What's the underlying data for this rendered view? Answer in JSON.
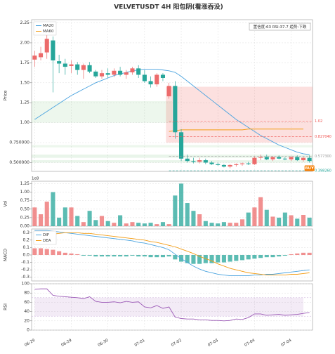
{
  "chart_data": {
    "type": "candlestick",
    "title": "VELVETUSDT  4H  阳包阴(看涨吞没)",
    "info": "置信度:63  RSI:37.7  趋势:下跌",
    "ylabel": "Price",
    "categories": [
      "06-29",
      null,
      null,
      null,
      null,
      null,
      "06-29",
      null,
      null,
      null,
      null,
      null,
      "06-30",
      null,
      null,
      null,
      null,
      null,
      "07-01",
      null,
      null,
      null,
      null,
      null,
      "07-02",
      null,
      null,
      null,
      null,
      null,
      "07-03",
      null,
      null,
      null,
      null,
      null,
      "07-04",
      null,
      null,
      null,
      null,
      null,
      "07-04",
      null,
      null,
      null
    ],
    "open": [
      1.79,
      1.82,
      1.88,
      2.03,
      1.77,
      1.74,
      1.71,
      1.73,
      1.66,
      1.72,
      1.64,
      1.58,
      1.62,
      1.6,
      1.65,
      1.6,
      1.63,
      1.68,
      1.6,
      1.52,
      1.48,
      1.6,
      1.33,
      1.46,
      0.88,
      0.55,
      0.52,
      0.51,
      0.53,
      0.5,
      0.48,
      0.47,
      0.45,
      0.47,
      0.48,
      0.49,
      0.48,
      0.56,
      0.57,
      0.54,
      0.57,
      0.55,
      0.54,
      0.57,
      0.53,
      0.56
    ],
    "high": [
      1.9,
      1.95,
      2.12,
      2.08,
      1.85,
      1.8,
      1.78,
      1.76,
      1.74,
      1.76,
      1.66,
      1.66,
      1.68,
      1.68,
      1.7,
      1.66,
      1.7,
      1.72,
      1.66,
      1.58,
      1.62,
      1.62,
      1.5,
      1.52,
      0.92,
      0.6,
      0.56,
      0.56,
      0.55,
      0.52,
      0.5,
      0.48,
      0.48,
      0.49,
      0.5,
      0.51,
      0.58,
      0.6,
      0.6,
      0.58,
      0.59,
      0.57,
      0.58,
      0.59,
      0.57,
      0.59
    ],
    "low": [
      1.7,
      1.78,
      1.8,
      1.38,
      1.62,
      1.6,
      1.62,
      1.6,
      1.55,
      1.62,
      1.56,
      1.55,
      1.56,
      1.57,
      1.58,
      1.55,
      1.6,
      1.56,
      1.5,
      1.44,
      1.45,
      1.52,
      1.3,
      0.8,
      0.52,
      0.5,
      0.49,
      0.49,
      0.48,
      0.47,
      0.46,
      0.44,
      0.43,
      0.45,
      0.46,
      0.47,
      0.47,
      0.53,
      0.53,
      0.52,
      0.54,
      0.53,
      0.52,
      0.52,
      0.51,
      0.5
    ],
    "close": [
      1.84,
      1.87,
      2.05,
      1.78,
      1.74,
      1.7,
      1.73,
      1.66,
      1.72,
      1.64,
      1.58,
      1.62,
      1.6,
      1.65,
      1.6,
      1.63,
      1.68,
      1.6,
      1.52,
      1.48,
      1.6,
      1.56,
      1.46,
      0.88,
      0.55,
      0.52,
      0.51,
      0.53,
      0.5,
      0.48,
      0.47,
      0.45,
      0.47,
      0.48,
      0.49,
      0.48,
      0.56,
      0.57,
      0.54,
      0.57,
      0.55,
      0.54,
      0.57,
      0.53,
      0.56,
      0.52
    ],
    "up_color": "#ec6b6b",
    "down_color": "#26a69a",
    "grid": true,
    "ylim": [
      0.39,
      2.29
    ],
    "yticks": [
      {
        "value": 0.5,
        "label": "0.500000"
      },
      {
        "value": 0.75,
        "label": "0.750000"
      },
      {
        "value": 1,
        "label": "1.00"
      },
      1.25,
      {
        "value": 1.5,
        "label": "1.50"
      },
      1.75,
      {
        "value": 2,
        "label": "2.00"
      },
      2.25
    ],
    "lines": [
      {
        "name": "MA20",
        "color": "#4aa3df",
        "values": [
          1.04,
          1.09,
          1.14,
          1.19,
          1.24,
          1.29,
          1.34,
          1.38,
          1.42,
          1.46,
          1.5,
          1.53,
          1.56,
          1.59,
          1.61,
          1.63,
          1.65,
          1.66,
          1.67,
          1.67,
          1.67,
          1.66,
          1.65,
          1.63,
          1.58,
          1.52,
          1.46,
          1.4,
          1.34,
          1.28,
          1.22,
          1.16,
          1.1,
          1.04,
          0.99,
          0.94,
          0.89,
          0.84,
          0.8,
          0.76,
          0.72,
          0.69,
          0.66,
          0.63,
          0.61,
          0.6
        ]
      },
      {
        "name": "MA60",
        "color": "#f39c12",
        "values": [
          null,
          null,
          null,
          null,
          null,
          null,
          null,
          null,
          null,
          null,
          null,
          null,
          null,
          null,
          null,
          null,
          null,
          null,
          null,
          null,
          null,
          null,
          0.89,
          0.9,
          0.91,
          0.91,
          0.91,
          0.91,
          0.91,
          0.91,
          0.91,
          0.91,
          0.91,
          0.91,
          0.91,
          0.92,
          0.92,
          0.92,
          0.92,
          0.92,
          0.92,
          0.92,
          0.92,
          0.92,
          0.92,
          null
        ]
      }
    ],
    "zones": [
      {
        "y0": 1.0,
        "y1": 1.27,
        "start": 0,
        "end": 22,
        "color": "rgba(76,175,80,0.10)"
      },
      {
        "y0": 0.69,
        "y1": 0.72,
        "start": 0,
        "end": 45,
        "color": "rgba(76,175,80,0.10)"
      },
      {
        "y0": 0.56,
        "y1": 0.6,
        "start": 0,
        "end": 45,
        "color": "rgba(76,175,80,0.12)"
      },
      {
        "y0": 0.5,
        "y1": 0.53,
        "start": 0,
        "end": 45,
        "color": "rgba(76,175,80,0.12)"
      },
      {
        "y0": 0.75,
        "y1": 1.45,
        "start": 22,
        "end": 45,
        "color": "rgba(239,83,80,0.18)"
      }
    ],
    "levels": [
      {
        "value": 1.02,
        "label": "1.02",
        "color": "#ef5350"
      },
      {
        "value": 0.82704,
        "label": "0.827040",
        "color": "#ef5350"
      },
      {
        "value": 0.5773,
        "label": "0.577300",
        "color": "#999999"
      },
      {
        "value": 0.39826,
        "label": "0.398260",
        "color": "#26a69a"
      }
    ],
    "signal": {
      "label": "BUY",
      "color": "#f57c00"
    },
    "volume": {
      "ylabel": "Vol",
      "scale_label": "1e8",
      "ylim": [
        0,
        1.32
      ],
      "yticks": [
        {
          "value": 0,
          "label": "0.00"
        },
        0.25,
        {
          "value": 0.5,
          "label": "0.50"
        },
        0.75,
        {
          "value": 1,
          "label": "1.00"
        },
        1.25
      ],
      "values": [
        0.55,
        0.35,
        0.72,
        1.0,
        0.25,
        0.55,
        0.55,
        0.3,
        0.12,
        0.45,
        0.18,
        0.3,
        0.15,
        0.1,
        0.32,
        0.08,
        0.12,
        0.1,
        0.08,
        0.1,
        0.06,
        0.12,
        0.06,
        0.9,
        1.25,
        0.68,
        0.45,
        0.35,
        0.15,
        0.1,
        0.08,
        0.12,
        0.1,
        0.1,
        0.2,
        0.4,
        0.55,
        0.85,
        0.48,
        0.28,
        0.25,
        0.4,
        0.32,
        0.22,
        0.33,
        0.25
      ]
    },
    "macd": {
      "ylabel": "MACD",
      "ylim": [
        -0.35,
        0.35
      ],
      "yticks": [
        -0.3,
        -0.2,
        -0.1,
        {
          "value": 0,
          "label": "0.0"
        },
        0.1,
        0.2,
        0.3
      ],
      "hist": [
        0.09,
        0.09,
        0.08,
        0.07,
        0.05,
        0.03,
        0.02,
        0.01,
        -0.01,
        -0.01,
        -0.02,
        -0.02,
        -0.02,
        -0.02,
        -0.02,
        -0.02,
        -0.01,
        -0.02,
        -0.02,
        -0.03,
        -0.03,
        -0.03,
        -0.02,
        -0.06,
        -0.09,
        -0.11,
        -0.12,
        -0.12,
        -0.11,
        -0.11,
        -0.1,
        -0.1,
        -0.09,
        -0.08,
        -0.07,
        -0.06,
        -0.05,
        -0.04,
        -0.03,
        -0.03,
        -0.02,
        -0.01,
        0.01,
        0.02,
        0.03,
        0.03
      ],
      "series": [
        {
          "name": "DIF",
          "color": "#4aa3df",
          "values": [
            0.33,
            0.33,
            0.33,
            0.32,
            0.31,
            0.3,
            0.29,
            0.28,
            0.27,
            0.26,
            0.25,
            0.24,
            0.23,
            0.22,
            0.21,
            0.2,
            0.19,
            0.17,
            0.16,
            0.14,
            0.12,
            0.1,
            0.07,
            0.01,
            -0.05,
            -0.1,
            -0.15,
            -0.19,
            -0.22,
            -0.24,
            -0.26,
            -0.27,
            -0.28,
            -0.28,
            -0.28,
            -0.28,
            -0.27,
            -0.27,
            -0.26,
            -0.26,
            -0.25,
            -0.24,
            -0.23,
            -0.22,
            -0.21,
            -0.2
          ]
        },
        {
          "name": "DEA",
          "color": "#f39c12",
          "values": [
            0.24,
            0.26,
            0.27,
            0.28,
            0.29,
            0.3,
            0.3,
            0.3,
            0.29,
            0.29,
            0.28,
            0.27,
            0.26,
            0.25,
            0.24,
            0.23,
            0.22,
            0.21,
            0.2,
            0.18,
            0.17,
            0.15,
            0.13,
            0.11,
            0.08,
            0.05,
            0.02,
            -0.02,
            -0.05,
            -0.08,
            -0.12,
            -0.15,
            -0.18,
            -0.2,
            -0.22,
            -0.24,
            -0.25,
            -0.26,
            -0.27,
            -0.27,
            -0.27,
            -0.27,
            -0.26,
            -0.26,
            -0.25,
            -0.24
          ]
        }
      ]
    },
    "rsi": {
      "ylabel": "RSI",
      "color": "#9b59b6",
      "ylim": [
        0,
        100
      ],
      "yticks": [
        0,
        20,
        40,
        60,
        80,
        100
      ],
      "band": [
        30,
        70
      ],
      "values": [
        88,
        89,
        89,
        75,
        73,
        72,
        71,
        70,
        68,
        72,
        62,
        60,
        60,
        61,
        59,
        62,
        60,
        61,
        50,
        48,
        53,
        47,
        50,
        28,
        25,
        24,
        24,
        22,
        22,
        21,
        21,
        20,
        21,
        24,
        23,
        27,
        35,
        35,
        32,
        33,
        34,
        32,
        33,
        34,
        36,
        38
      ]
    }
  }
}
